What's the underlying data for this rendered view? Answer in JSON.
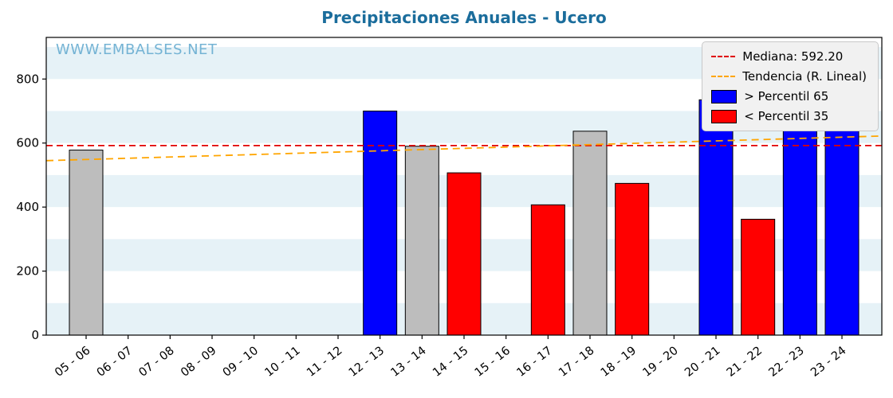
{
  "title": "Precipitaciones Anuales - Ucero",
  "watermark": "WWW.EMBALSES.NET",
  "colors": {
    "title": "#1b6d9c",
    "watermark": "#74b3d4",
    "above65": "#0000ff",
    "below35": "#ff0000",
    "mid": "#bdbdbd",
    "bar_edge": "#000000",
    "median_line": "#e00000",
    "trend_line": "#ffa500",
    "band": "#e6f2f7",
    "axis": "#000000"
  },
  "legend": [
    {
      "label": "Mediana: 592.20",
      "swatch": "dashed-line",
      "color": "#e00000"
    },
    {
      "label": "Tendencia (R. Lineal)",
      "swatch": "dashed-line",
      "color": "#ffa500"
    },
    {
      "label": "> Percentil 65",
      "swatch": "box",
      "color": "#0000ff"
    },
    {
      "label": "< Percentil 35",
      "swatch": "box",
      "color": "#ff0000"
    }
  ],
  "chart_data": {
    "type": "bar",
    "title": "Precipitaciones Anuales - Ucero",
    "xlabel": "",
    "ylabel": "",
    "categories": [
      "05 - 06",
      "06 - 07",
      "07 - 08",
      "08 - 09",
      "09 - 10",
      "10 - 11",
      "11 - 12",
      "12 - 13",
      "13 - 14",
      "14 - 15",
      "15 - 16",
      "16 - 17",
      "17 - 18",
      "18 - 19",
      "19 - 20",
      "20 - 21",
      "21 - 22",
      "22 - 23",
      "23 - 24"
    ],
    "values": [
      578,
      null,
      null,
      null,
      null,
      null,
      null,
      700,
      590,
      507,
      null,
      407,
      637,
      474,
      null,
      735,
      362,
      710,
      775
    ],
    "bar_classes": [
      "mid",
      null,
      null,
      null,
      null,
      null,
      null,
      "above65",
      "mid",
      "below35",
      null,
      "below35",
      "mid",
      "below35",
      null,
      "above65",
      "below35",
      "above65",
      "above65"
    ],
    "median": 592.2,
    "trend": {
      "start": 545,
      "end": 622
    },
    "ylim": [
      0,
      930
    ],
    "yticks": [
      0,
      200,
      400,
      600,
      800
    ],
    "grid": "horizontal-bands",
    "legend_position": "upper right"
  }
}
